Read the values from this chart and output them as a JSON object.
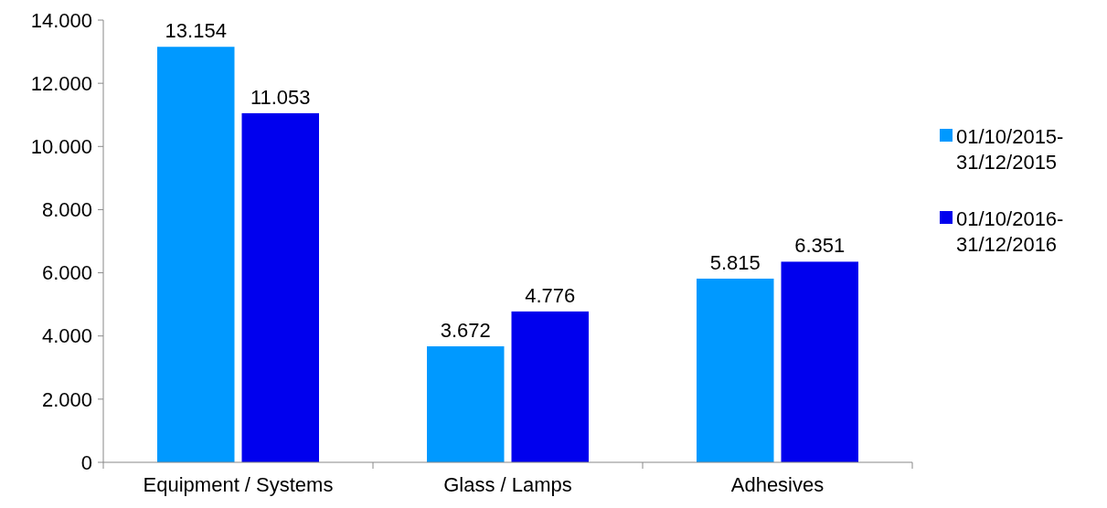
{
  "chart_data": {
    "type": "bar",
    "categories": [
      "Equipment / Systems",
      "Glass / Lamps",
      "Adhesives"
    ],
    "series": [
      {
        "name": "01/10/2015-31/12/2015",
        "color": "#0099ff",
        "values": [
          13154,
          3672,
          5815
        ],
        "value_labels": [
          "13.154",
          "3.672",
          "5.815"
        ]
      },
      {
        "name": "01/10/2016-31/12/2016",
        "color": "#0000ee",
        "values": [
          11053,
          4776,
          6351
        ],
        "value_labels": [
          "11.053",
          "4.776",
          "6.351"
        ]
      }
    ],
    "ylim": [
      0,
      14000
    ],
    "yticks": [
      {
        "value": 0,
        "label": "0"
      },
      {
        "value": 2000,
        "label": "2.000"
      },
      {
        "value": 4000,
        "label": "4.000"
      },
      {
        "value": 6000,
        "label": "6.000"
      },
      {
        "value": 8000,
        "label": "8.000"
      },
      {
        "value": 10000,
        "label": "10.000"
      },
      {
        "value": 12000,
        "label": "12.000"
      },
      {
        "value": 14000,
        "label": "14.000"
      }
    ],
    "grid": false,
    "legend": "right"
  }
}
